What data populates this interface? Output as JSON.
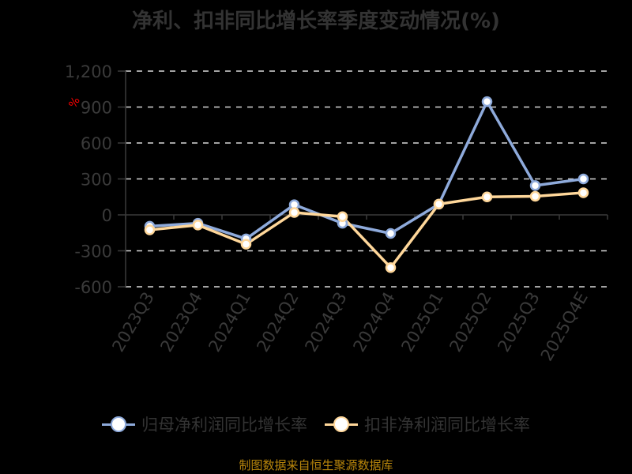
{
  "title": "净利、扣非同比增长率季度变动情况(%)",
  "unit_label": "%",
  "source": "制图数据来自恒生聚源数据库",
  "colors": {
    "series1": "#8eaadb",
    "series2": "#ffd79a",
    "axis": "#3a3a3a",
    "grid": "#d9d9d9",
    "tick_text": "#3a3a3a",
    "unit": "#ff0000",
    "source": "#b8860b"
  },
  "legend": [
    {
      "label": "归母净利润同比增长率",
      "color": "#8eaadb"
    },
    {
      "label": "扣非净利润同比增长率",
      "color": "#ffd79a"
    }
  ],
  "chart_data": {
    "type": "line",
    "title": "净利、扣非同比增长率季度变动情况(%)",
    "xlabel": "",
    "ylabel": "%",
    "categories": [
      "2023Q3",
      "2023Q4",
      "2024Q1",
      "2024Q2",
      "2024Q3",
      "2024Q4",
      "2025Q1",
      "2025Q2",
      "2025Q3",
      "2025Q4E"
    ],
    "series": [
      {
        "name": "归母净利润同比增长率",
        "values": [
          -95,
          -70,
          -200,
          85,
          -70,
          -155,
          90,
          945,
          245,
          300
        ]
      },
      {
        "name": "扣非净利润同比增长率",
        "values": [
          -125,
          -85,
          -245,
          20,
          -15,
          -440,
          90,
          150,
          155,
          185
        ]
      }
    ],
    "ylim": [
      -600,
      1200
    ],
    "yticks": [
      -600,
      -300,
      0,
      300,
      600,
      900,
      1200
    ],
    "ytick_labels": [
      "-600",
      "-300",
      "0",
      "300",
      "600",
      "900",
      "1,200"
    ],
    "grid": true,
    "legend_position": "bottom"
  }
}
